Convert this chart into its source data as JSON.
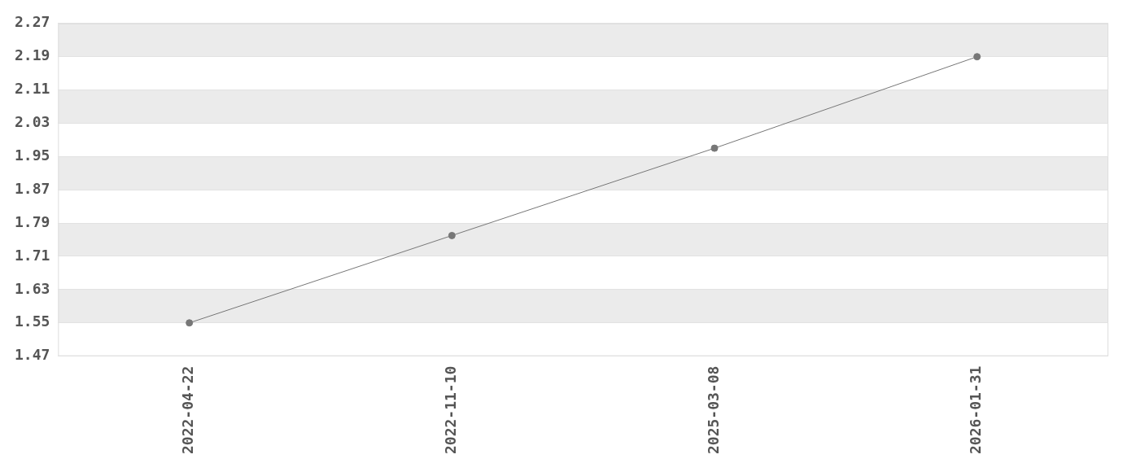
{
  "chart_data": {
    "type": "line",
    "categories": [
      "2022-04-22",
      "2022-11-10",
      "2025-03-08",
      "2026-01-31"
    ],
    "series": [
      {
        "color": "#777777",
        "values": [
          1.55,
          1.76,
          1.97,
          2.19
        ]
      }
    ],
    "ylim": [
      1.47,
      2.27
    ],
    "yticks": [
      1.47,
      1.55,
      1.63,
      1.71,
      1.79,
      1.87,
      1.95,
      2.03,
      2.11,
      2.19,
      2.27
    ],
    "grid": "y",
    "legend": false,
    "marker": "circle",
    "line_style": "solid"
  }
}
